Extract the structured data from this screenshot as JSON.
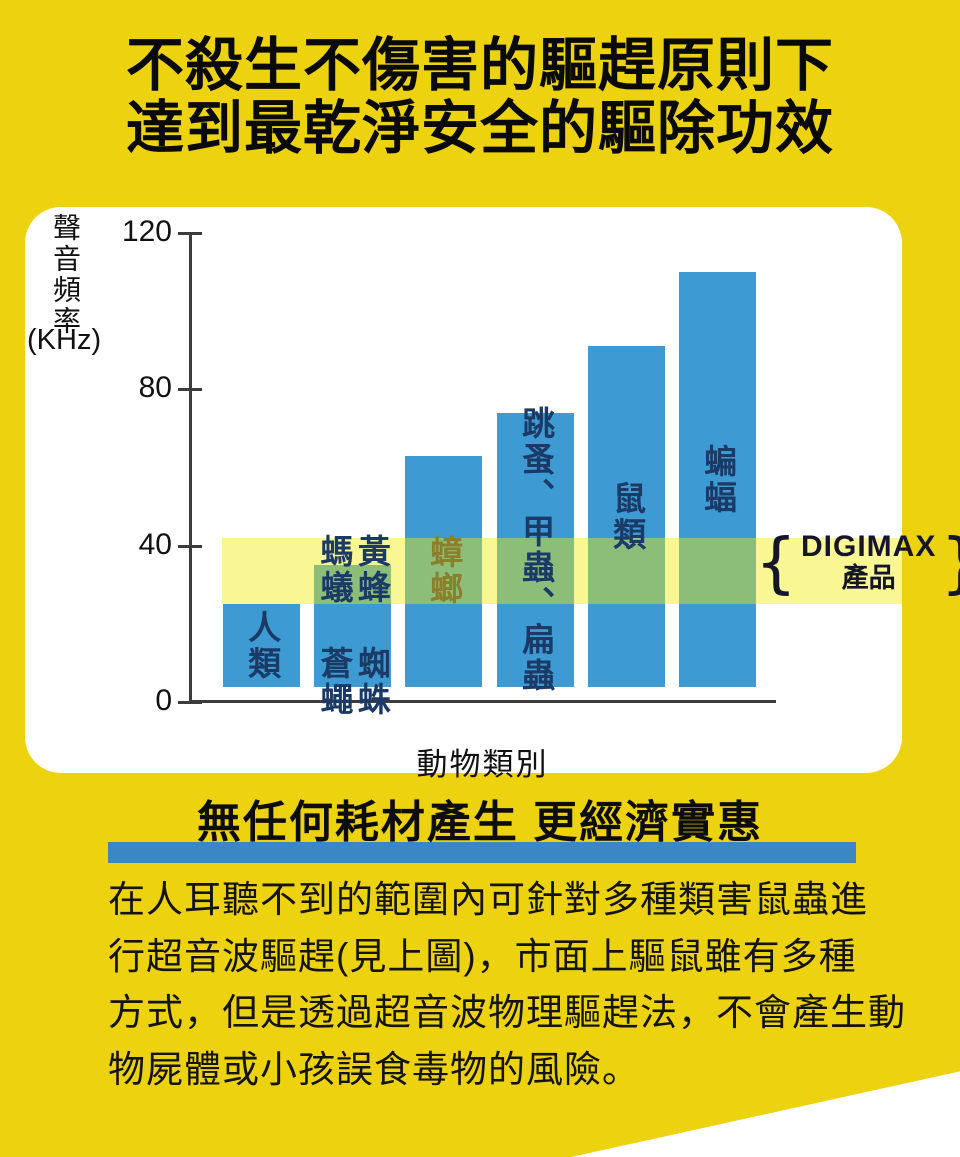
{
  "page": {
    "title_lines": [
      "不殺生不傷害的驅趕原則下",
      "達到最乾淨安全的驅除功效"
    ]
  },
  "colors": {
    "background": "#EDD30F",
    "bar": "#3D9AD3",
    "band": "rgba(241,237,10,0.44)",
    "underline": "#3B86C4",
    "label_navy": "#1B3A66",
    "label_olive": "#8A7F2B",
    "axis": "#3c3c3c"
  },
  "chart_data": {
    "type": "bar",
    "title": "",
    "ylabel": "聲音頻率",
    "ylabel_unit": "(KHz)",
    "xlabel": "動物類別",
    "ylim": [
      0,
      120
    ],
    "yticks": [
      "0",
      "40",
      "80",
      "120"
    ],
    "ytick_values": [
      0,
      40,
      80,
      120
    ],
    "grid": false,
    "legend": "none",
    "categories": [
      "人類",
      "螞蟻、蒼蠅、黃蜂、蜘蛛",
      "蟑螂",
      "跳蚤、甲蟲、扁蟲",
      "鼠類",
      "蝙蝠"
    ],
    "values": [
      25,
      35,
      63,
      74,
      91,
      110
    ],
    "bar_labels": [
      {
        "cols": [
          "人類"
        ],
        "tinted": false
      },
      {
        "cols": [
          "螞蟻 蒼蠅",
          "黃蜂 蜘蛛"
        ],
        "tinted": false
      },
      {
        "cols": [
          "蟑螂"
        ],
        "tinted": true
      },
      {
        "cols": [
          "跳蚤、甲蟲、扁蟲"
        ],
        "tinted": false
      },
      {
        "cols": [
          "鼠類"
        ],
        "tinted": false
      },
      {
        "cols": [
          "蝙蝠"
        ],
        "tinted": false
      }
    ],
    "band": {
      "from": 25,
      "to": 42,
      "label": "DIGIMAX 產品"
    }
  },
  "highlight": {
    "open_brace": "{",
    "close_brace": "}",
    "title": "DIGIMAX",
    "subtitle": "產品"
  },
  "section": {
    "heading": "無任何耗材產生 更經濟實惠"
  },
  "paragraph": {
    "lines": [
      "在人耳聽不到的範圍內可針對多種類害鼠蟲進",
      "行超音波驅趕(見上圖)，市面上驅鼠雖有多種",
      "方式，但是透過超音波物理驅趕法，不會產生動",
      "物屍體或小孩誤食毒物的風險。"
    ]
  }
}
